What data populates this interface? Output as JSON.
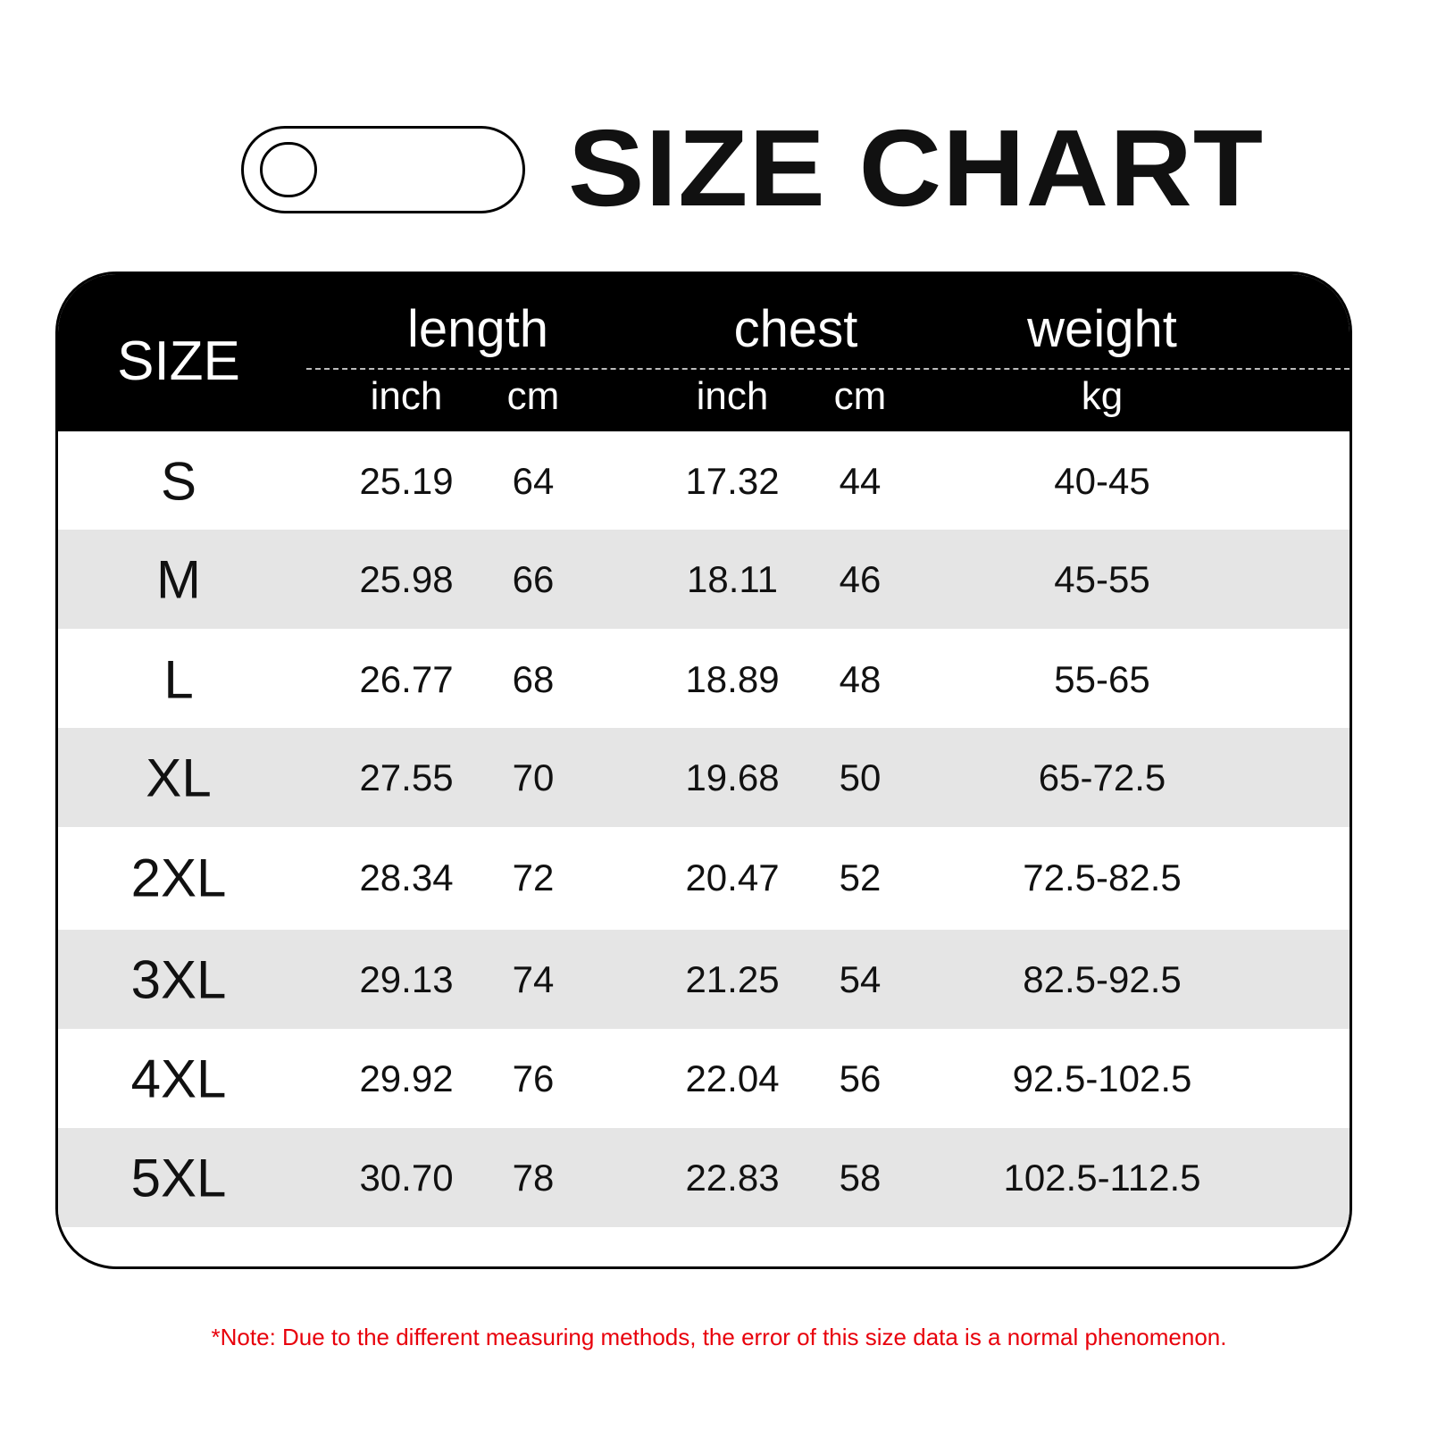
{
  "title": "SIZE CHART",
  "header": {
    "size": "SIZE",
    "length": "length",
    "chest": "chest",
    "weight": "weight",
    "length_inch": "inch",
    "length_cm": "cm",
    "chest_inch": "inch",
    "chest_cm": "cm",
    "weight_kg": "kg"
  },
  "rows": [
    {
      "size": "S",
      "length_inch": "25.19",
      "length_cm": "64",
      "chest_inch": "17.32",
      "chest_cm": "44",
      "weight": "40-45"
    },
    {
      "size": "M",
      "length_inch": "25.98",
      "length_cm": "66",
      "chest_inch": "18.11",
      "chest_cm": "46",
      "weight": "45-55"
    },
    {
      "size": "L",
      "length_inch": "26.77",
      "length_cm": "68",
      "chest_inch": "18.89",
      "chest_cm": "48",
      "weight": "55-65"
    },
    {
      "size": "XL",
      "length_inch": "27.55",
      "length_cm": "70",
      "chest_inch": "19.68",
      "chest_cm": "50",
      "weight": "65-72.5"
    },
    {
      "size": "2XL",
      "length_inch": "28.34",
      "length_cm": "72",
      "chest_inch": "20.47",
      "chest_cm": "52",
      "weight": "72.5-82.5"
    },
    {
      "size": "3XL",
      "length_inch": "29.13",
      "length_cm": "74",
      "chest_inch": "21.25",
      "chest_cm": "54",
      "weight": "82.5-92.5"
    },
    {
      "size": "4XL",
      "length_inch": "29.92",
      "length_cm": "76",
      "chest_inch": "22.04",
      "chest_cm": "56",
      "weight": "92.5-102.5"
    },
    {
      "size": "5XL",
      "length_inch": "30.70",
      "length_cm": "78",
      "chest_inch": "22.83",
      "chest_cm": "58",
      "weight": "102.5-112.5"
    }
  ],
  "note": "*Note: Due to the different measuring methods, the error of this size data is a normal phenomenon.",
  "colors": {
    "header_bg": "#000000",
    "alt_row": "#e5e5e5",
    "note": "#e8000b"
  }
}
